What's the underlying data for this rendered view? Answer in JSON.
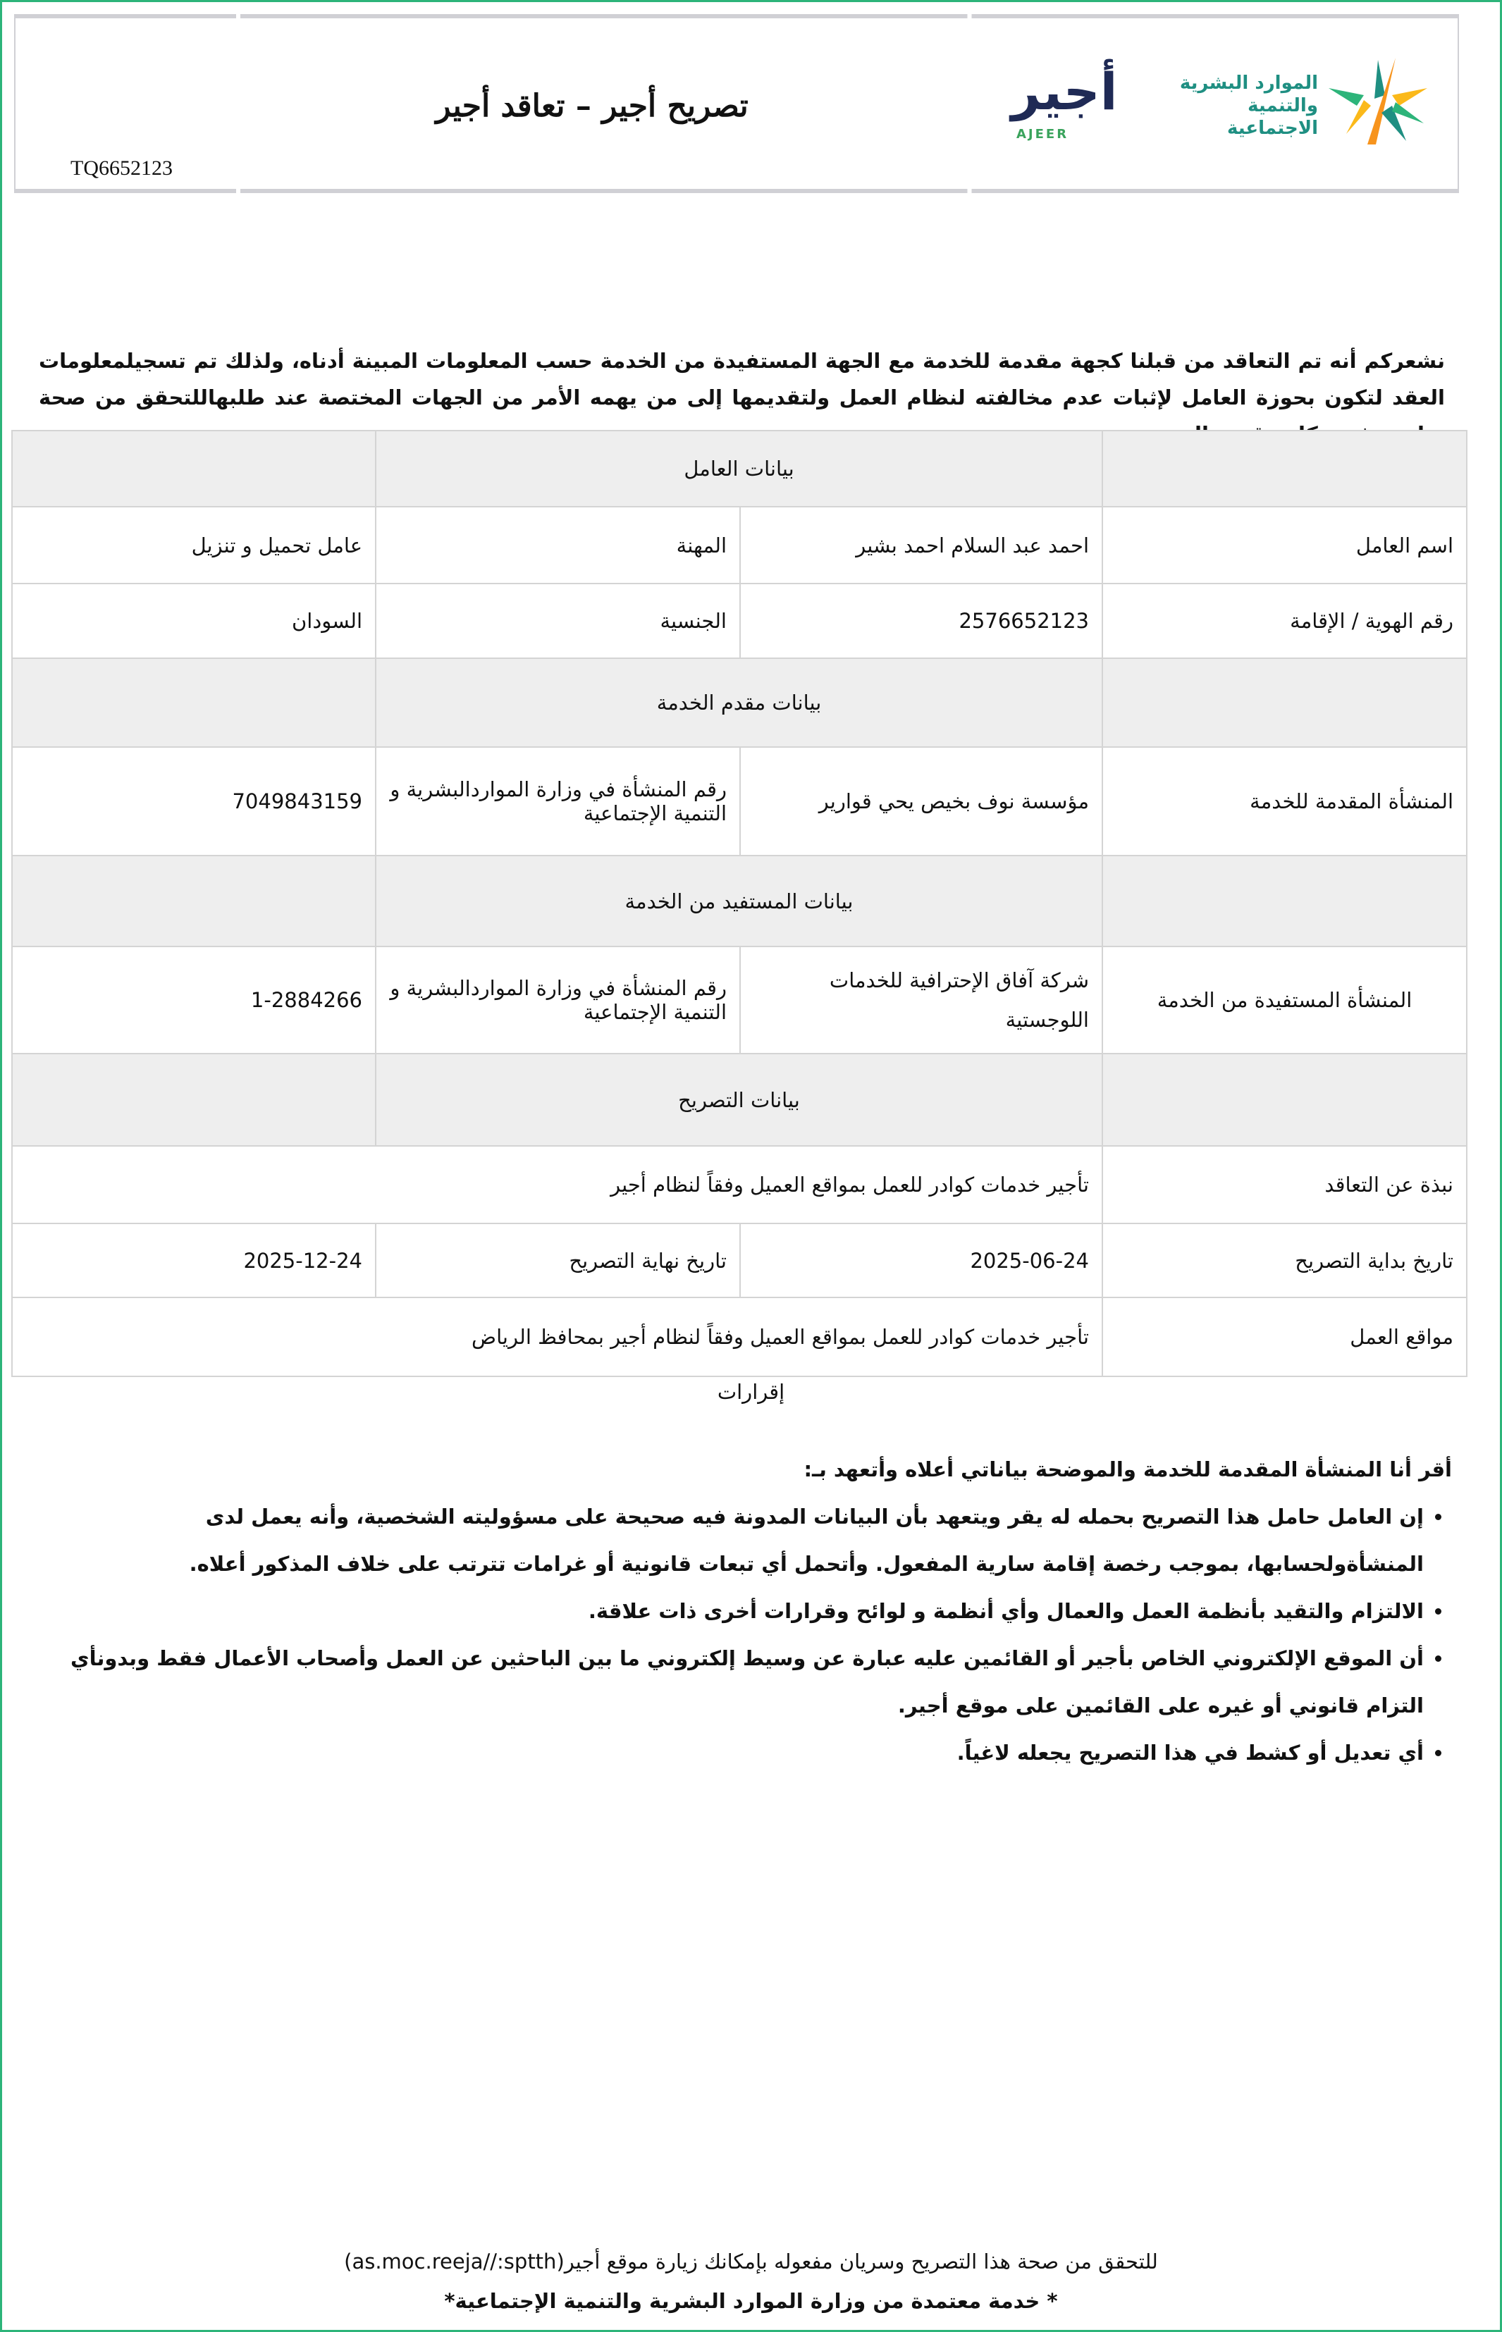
{
  "header": {
    "title": "تصريح أجير – تعاقد أجير",
    "permit_number": "TQ6652123",
    "ministry_logo_text": "الموارد البشرية والتنمية الاجتماعية",
    "ajeer_logo_ar": "أجير",
    "ajeer_logo_en": "AJEER"
  },
  "intro": "نشعركم أنه تم التعاقد من قبلنا كجهة مقدمة للخدمة مع الجهة المستفيدة من الخدمة حسب المعلومات المبينة أدناه، ولذلك تم تسجيلمعلومات العقد لتكون بحوزة العامل لإثبات عدم مخالفته لنظام العمل ولتقديمها إلى من يهمه الأمر من الجهات المختصة عند طلبهاللتحقق من صحة تواجده في مكان تقديم الخدمة",
  "worker": {
    "section": "بيانات العامل",
    "name_label": "اسم العامل",
    "name": "احمد عبد السلام احمد بشير",
    "occupation_label": "المهنة",
    "occupation": "عامل تحميل و تنزيل",
    "id_label": "رقم الهوية / الإقامة",
    "id": "2576652123",
    "nationality_label": "الجنسية",
    "nationality": "السودان"
  },
  "provider": {
    "section": "بيانات مقدم الخدمة",
    "entity_label": "المنشأة المقدمة للخدمة",
    "entity": "مؤسسة نوف بخيص يحي قوارير",
    "number_label": "رقم المنشأة في وزارة المواردالبشرية و التنمية الإجتماعية",
    "number": "7049843159"
  },
  "beneficiary": {
    "section": "بيانات المستفيد من الخدمة",
    "entity_label": "المنشأة المستفيدة من الخدمة",
    "entity": "شركة آفاق الإحترافية للخدمات اللوجستية",
    "number_label": "رقم المنشأة في وزارة المواردالبشرية و التنمية الإجتماعية",
    "number": "1-2884266"
  },
  "permit": {
    "section": "بيانات التصريح",
    "summary_label": "نبذة عن التعاقد",
    "summary": "تأجير خدمات كوادر للعمل بمواقع العميل وفقاً لنظام أجير",
    "start_label": "تاريخ بداية التصريح",
    "start": "2025-06-24",
    "end_label": "تاريخ نهاية التصريح",
    "end": "2025-12-24",
    "locations_label": "مواقع العمل",
    "locations": "تأجير خدمات كوادر للعمل بمواقع العميل وفقاً لنظام أجير بمحافظ الرياض"
  },
  "acknowledgements": {
    "title": "إقرارات",
    "lead": "أقر أنا المنشأة المقدمة للخدمة والموضحة بياناتي أعلاه وأتعهد بـ:",
    "items": [
      "إن العامل حامل هذا التصريح بحمله له يقر ويتعهد بأن البيانات المدونة فيه صحيحة على مسؤوليته الشخصية، وأنه يعمل لدى المنشأةولحسابها، بموجب رخصة إقامة سارية المفعول. وأتحمل أي تبعات قانونية أو غرامات تترتب على خلاف المذكور أعلاه.",
      "الالتزام والتقيد بأنظمة العمل والعمال وأي أنظمة و لوائح وقرارات أخرى ذات علاقة.",
      "أن الموقع الإلكتروني الخاص بأجير أو القائمين عليه عبارة عن وسيط إلكتروني ما بين الباحثين عن العمل وأصحاب الأعمال فقط وبدونأي التزام قانوني أو غيره على القائمين على موقع أجير.",
      "أي تعديل أو كشط في هذا التصريح يجعله لاغياً."
    ]
  },
  "footer": {
    "verify": "للتحقق من صحة هذا التصريح وسريان مفعوله بإمكانك زيارة موقع أجير(as.moc.reeja//:sptth)",
    "approved": "* خدمة معتمدة من وزارة الموارد البشرية والتنمية الإجتماعية*"
  },
  "colors": {
    "frame": "#2db47a",
    "section_bg": "#eeeeee",
    "ajeer_navy": "#1f2a55",
    "ministry_teal": "#1f8f82"
  }
}
